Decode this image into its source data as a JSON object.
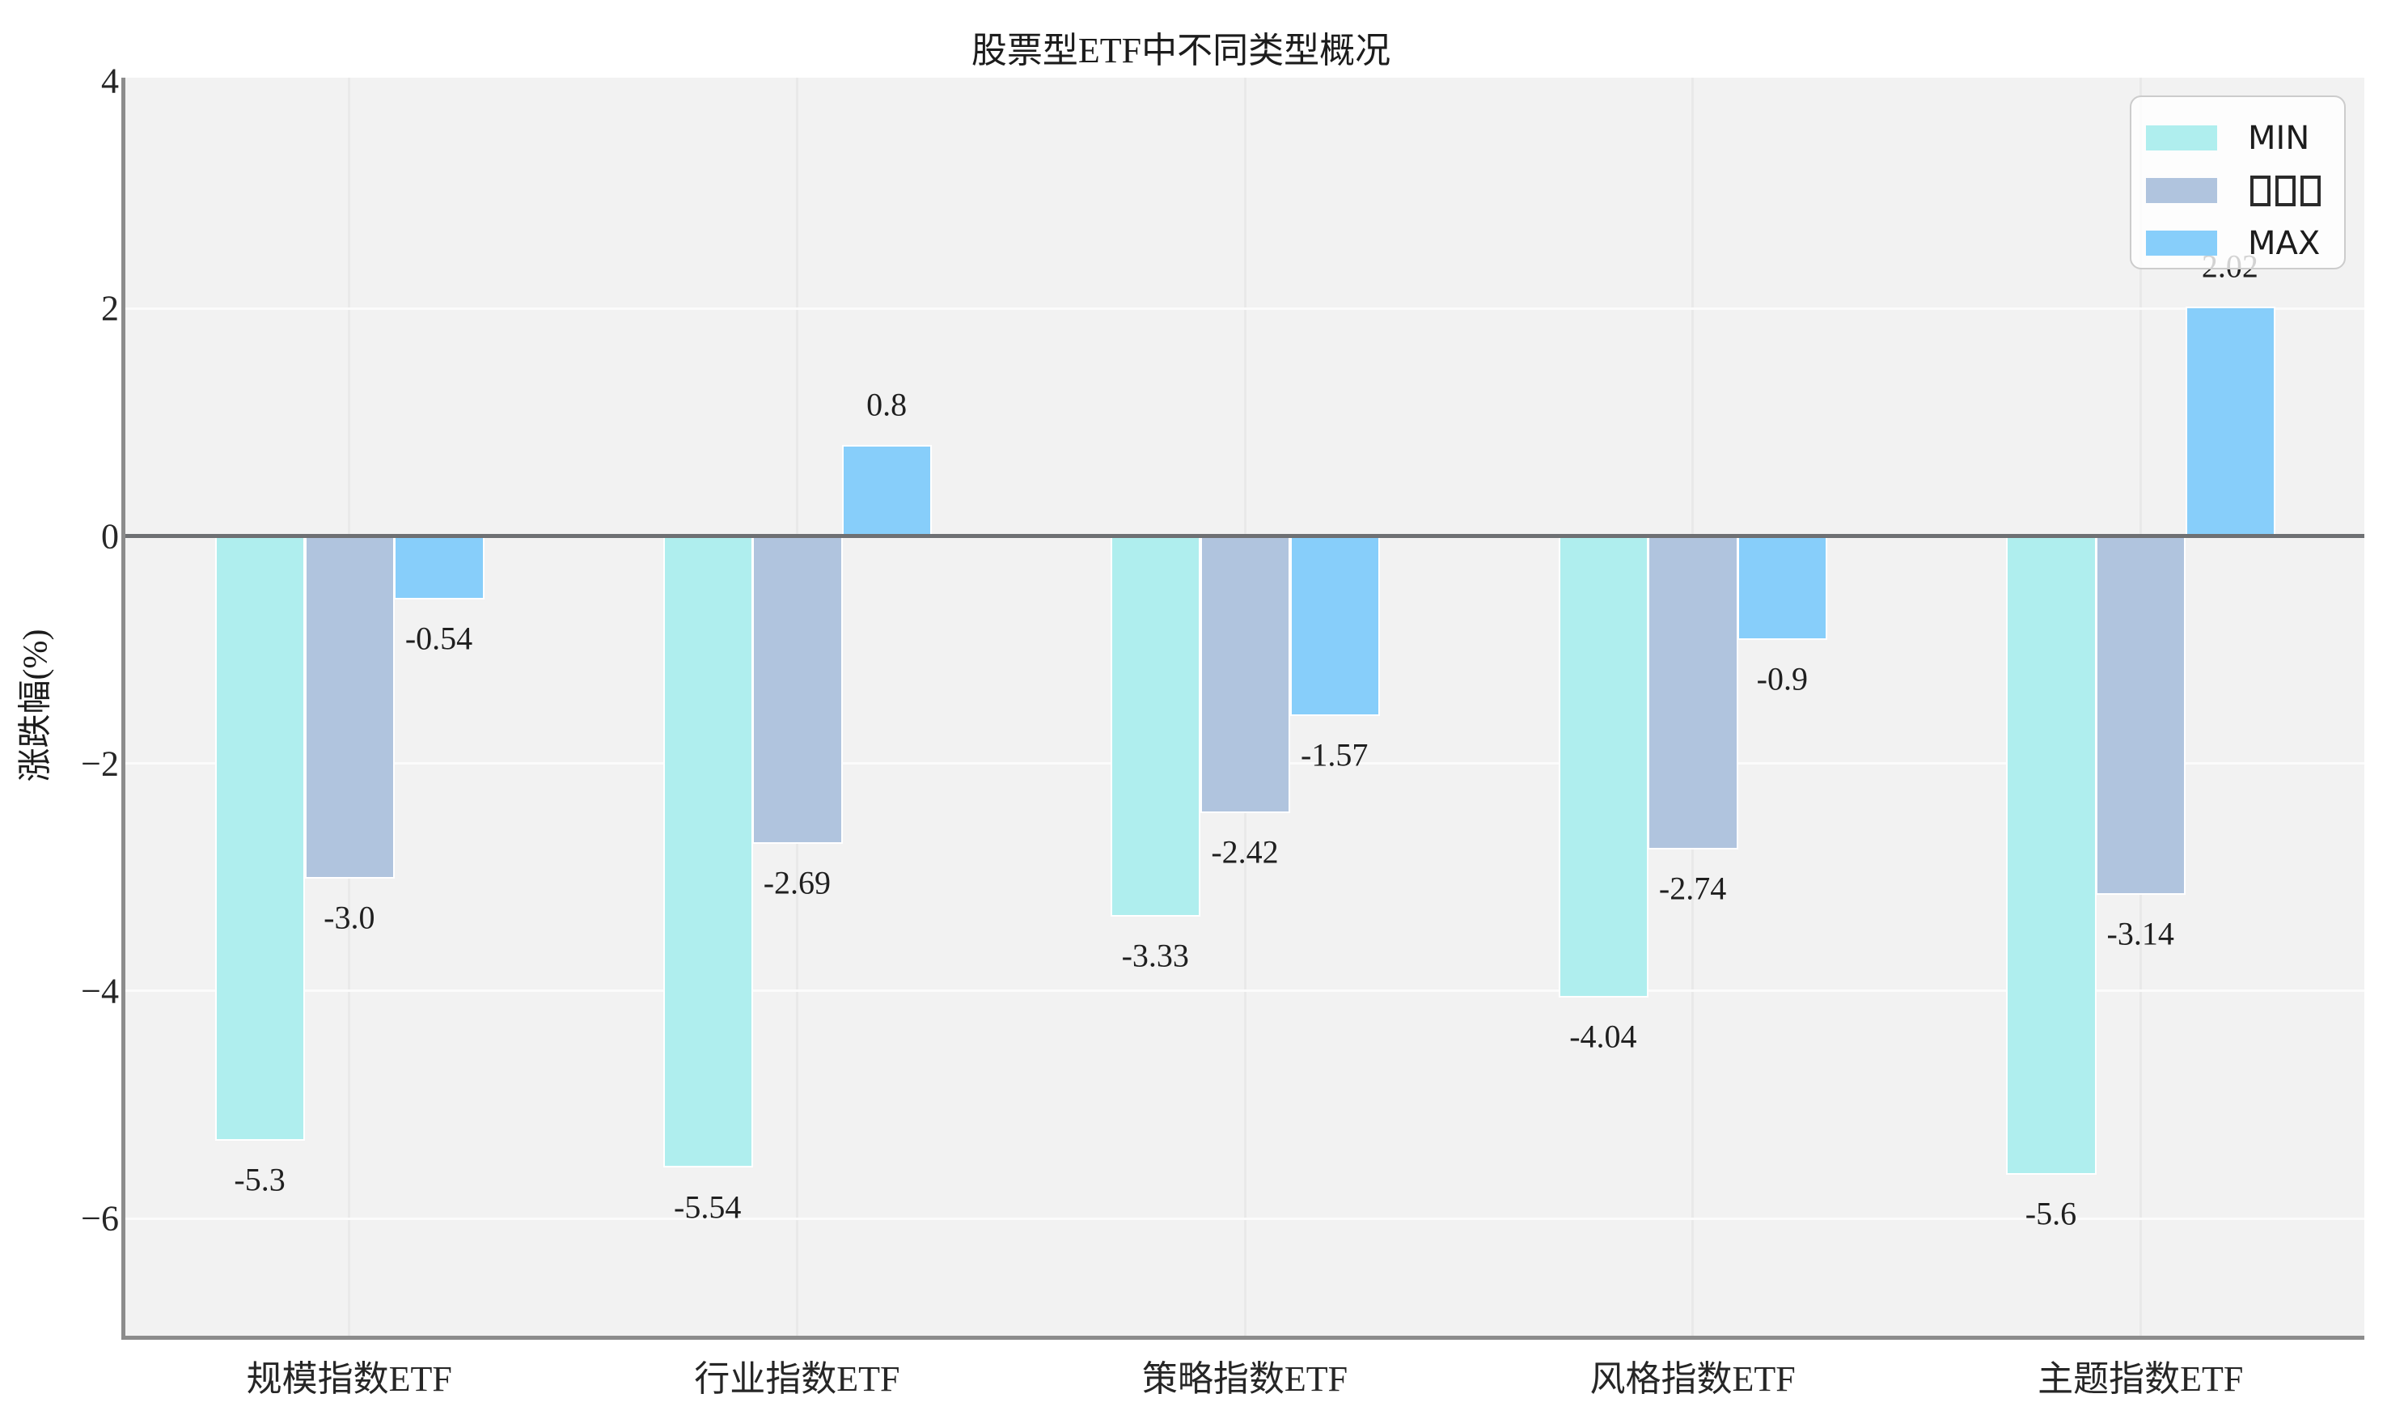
{
  "title": "股票型ETF中不同类型概况",
  "y_axis_label": "涨跌幅(%)",
  "chart_data": {
    "type": "bar",
    "title": "股票型ETF中不同类型概况",
    "xlabel": "",
    "ylabel": "涨跌幅(%)",
    "categories": [
      "规模指数ETF",
      "行业指数ETF",
      "策略指数ETF",
      "风格指数ETF",
      "主题指数ETF"
    ],
    "series": [
      {
        "name": "MIN",
        "legend_label": "MIN",
        "color": "#AFEEEE",
        "values": [
          -5.3,
          -5.54,
          -3.33,
          -4.04,
          -5.6
        ],
        "labels": [
          "-5.3",
          "-5.54",
          "-3.33",
          "-4.04",
          "-5.6"
        ]
      },
      {
        "name": "median (legend glyphs missing, shown as tofu boxes)",
        "legend_label": "□□□",
        "color": "#B0C4DE",
        "values": [
          -3.0,
          -2.69,
          -2.42,
          -2.74,
          -3.14
        ],
        "labels": [
          "-3.0",
          "-2.69",
          "-2.42",
          "-2.74",
          "-3.14"
        ]
      },
      {
        "name": "MAX",
        "legend_label": "MAX",
        "color": "#87CEFA",
        "values": [
          -0.54,
          0.8,
          -1.57,
          -0.9,
          2.02
        ],
        "labels": [
          "-0.54",
          "0.8",
          "-1.57",
          "-0.9",
          "2.02"
        ]
      }
    ],
    "yticks": [
      {
        "value": 4,
        "label": "4",
        "grid": false
      },
      {
        "value": 2,
        "label": "2",
        "grid": true
      },
      {
        "value": 0,
        "label": "0",
        "grid": false
      },
      {
        "value": -2,
        "label": "−2",
        "grid": true
      },
      {
        "value": -4,
        "label": "−4",
        "grid": true
      },
      {
        "value": -6,
        "label": "−6",
        "grid": true
      }
    ],
    "ylim": [
      -7.03,
      4.03
    ],
    "xlim": [
      -0.5,
      4.5
    ],
    "bar_group_offset": 0.2,
    "grid": true,
    "legend_position": "upper right"
  },
  "style": {
    "figure_bg": "#ffffff",
    "plot_bg": "#f2f2f2",
    "h_gridline": "#fbfbfb",
    "v_gridline": "#e9e9e9",
    "spine": "#8c8c8c",
    "zero_line": "#6e7073",
    "bar_edge": "#ffffff",
    "text": "#1c1c1c",
    "legend_bg": "rgba(255,255,255,0.8)",
    "legend_border": "#cccccc"
  }
}
